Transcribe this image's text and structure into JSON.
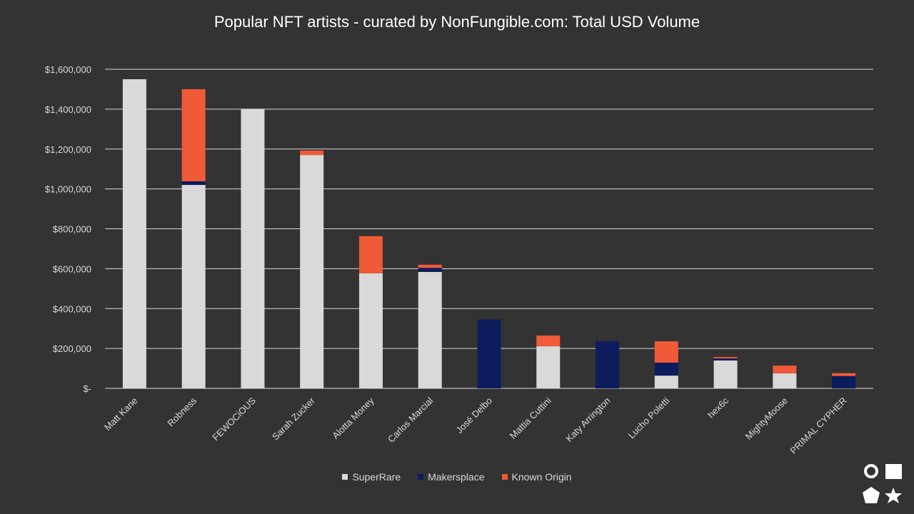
{
  "chart_data": {
    "type": "bar",
    "stacked": true,
    "title": "Popular NFT artists - curated by NonFungible.com: Total USD Volume",
    "categories": [
      "Matt Kane",
      "Robness",
      "FEWOCiOUS",
      "Sarah Zucker",
      "Alotta Money",
      "Carlos Marcial",
      "José Delbo",
      "Mattia Cuttini",
      "Katy Arrington",
      "Lucho Poletti",
      "hex6c",
      "MightyMoose",
      "PRIMAL CYPHER"
    ],
    "series": [
      {
        "name": "SuperRare",
        "color": "#d9d9d9",
        "values": [
          1550000,
          1020000,
          1400000,
          1170000,
          577000,
          584000,
          0,
          211000,
          0,
          64000,
          140000,
          75000,
          0
        ]
      },
      {
        "name": "Makersplace",
        "color": "#0c1c5c",
        "values": [
          0,
          18000,
          0,
          0,
          0,
          20000,
          345000,
          0,
          237000,
          65000,
          10000,
          0,
          62000
        ]
      },
      {
        "name": "Known Origin",
        "color": "#f05a38",
        "values": [
          0,
          462000,
          0,
          22000,
          186000,
          16000,
          0,
          54000,
          0,
          107000,
          7000,
          39000,
          14000
        ]
      }
    ],
    "ylim": [
      0,
      1600000
    ],
    "yticks": [
      "$-",
      "$200,000",
      "$400,000",
      "$600,000",
      "$800,000",
      "$1,000,000",
      "$1,200,000",
      "$1,400,000",
      "$1,600,000"
    ],
    "grid": true,
    "legend_position": "bottom"
  },
  "logo": {
    "shapes": [
      "circle",
      "square",
      "pentagon",
      "star"
    ]
  }
}
